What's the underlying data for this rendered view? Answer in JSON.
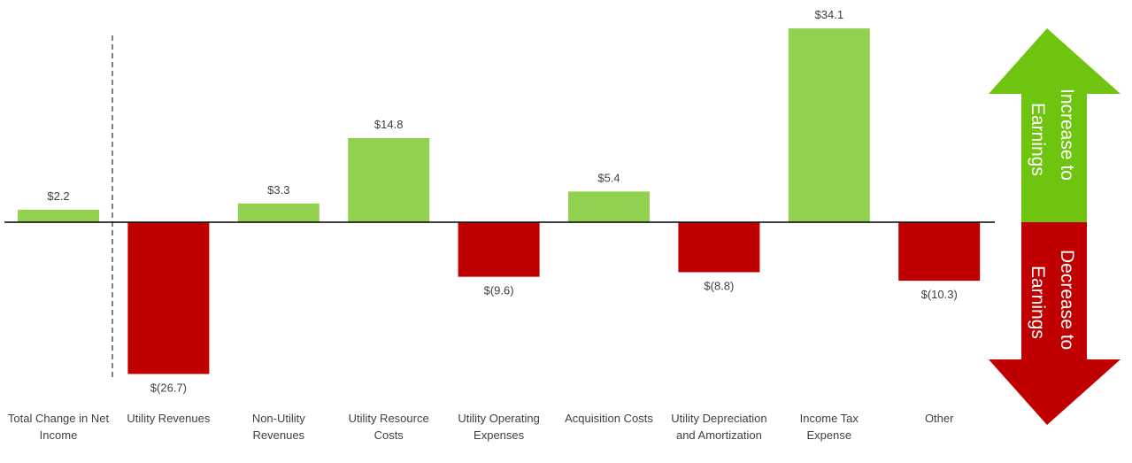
{
  "chart_data": {
    "type": "bar",
    "title": "",
    "xlabel": "",
    "ylabel": "",
    "categories": [
      [
        "Total Change in Net",
        "Income"
      ],
      [
        "Utility Revenues"
      ],
      [
        "Non-Utility",
        "Revenues"
      ],
      [
        "Utility Resource",
        "Costs"
      ],
      [
        "Utility Operating",
        "Expenses"
      ],
      [
        "Acquisition Costs"
      ],
      [
        "Utility Depreciation",
        "and Amortization"
      ],
      [
        "Income Tax",
        "Expense"
      ],
      [
        "Other"
      ]
    ],
    "values": [
      2.2,
      -26.7,
      3.3,
      14.8,
      -9.6,
      5.4,
      -8.8,
      34.1,
      -10.3
    ],
    "data_labels": [
      "$2.2",
      "$(26.7)",
      "$3.3",
      "$14.8",
      "$(9.6)",
      "$5.4",
      "$(8.8)",
      "$34.1",
      "$(10.3)"
    ],
    "ylim": [
      -30,
      35
    ],
    "grid": false,
    "legend": "none",
    "colors": {
      "positive": "#92d050",
      "negative": "#c00000",
      "axis": "#000000",
      "text": "#404040"
    },
    "separator_after_category": 0
  },
  "legend_arrow": {
    "increase_label": [
      "Increase to",
      "Earnings"
    ],
    "decrease_label": [
      "Decrease to",
      "Earnings"
    ],
    "increase_color": "#6ec40e",
    "decrease_color": "#c00000",
    "text_color": "#ffffff"
  }
}
